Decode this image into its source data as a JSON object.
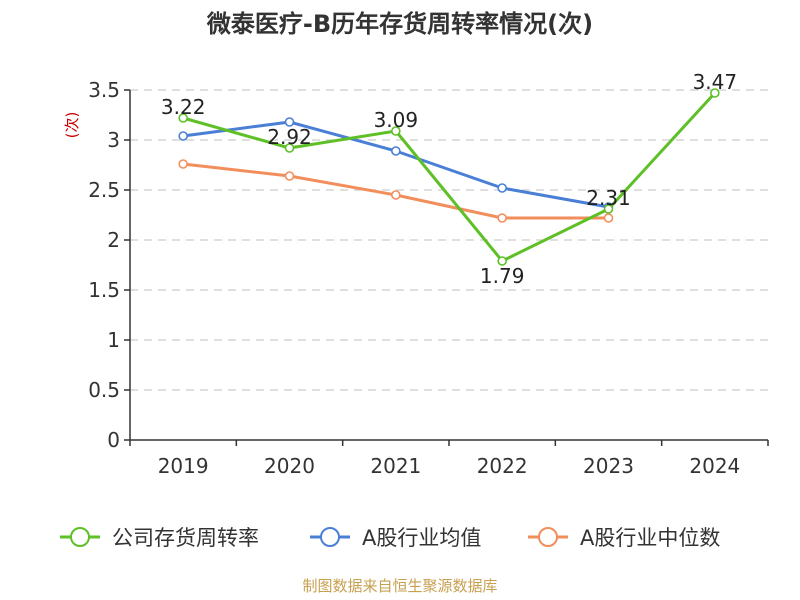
{
  "chart_data": {
    "type": "line",
    "title": "微泰医疗-B历年存货周转率情况(次)",
    "ylabel": "(次)",
    "xlabel": "",
    "categories": [
      "2019",
      "2020",
      "2021",
      "2022",
      "2023",
      "2024"
    ],
    "ylim": [
      0,
      3.5
    ],
    "yticks": [
      "0",
      "0.5",
      "1",
      "1.5",
      "2",
      "2.5",
      "3",
      "3.5"
    ],
    "grid": true,
    "legend_position": "bottom",
    "series": [
      {
        "name": "公司存货周转率",
        "color": "#5ec026",
        "values": [
          3.22,
          2.92,
          3.09,
          1.79,
          2.31,
          3.47
        ],
        "labels": [
          "3.22",
          "2.92",
          "3.09",
          "1.79",
          "2.31",
          "3.47"
        ]
      },
      {
        "name": "A股行业均值",
        "color": "#4a7fd6",
        "values": [
          3.04,
          3.18,
          2.89,
          2.52,
          2.33,
          null
        ]
      },
      {
        "name": "A股行业中位数",
        "color": "#f28e5c",
        "values": [
          2.76,
          2.64,
          2.45,
          2.22,
          2.22,
          null
        ]
      }
    ],
    "source": "制图数据来自恒生聚源数据库"
  }
}
